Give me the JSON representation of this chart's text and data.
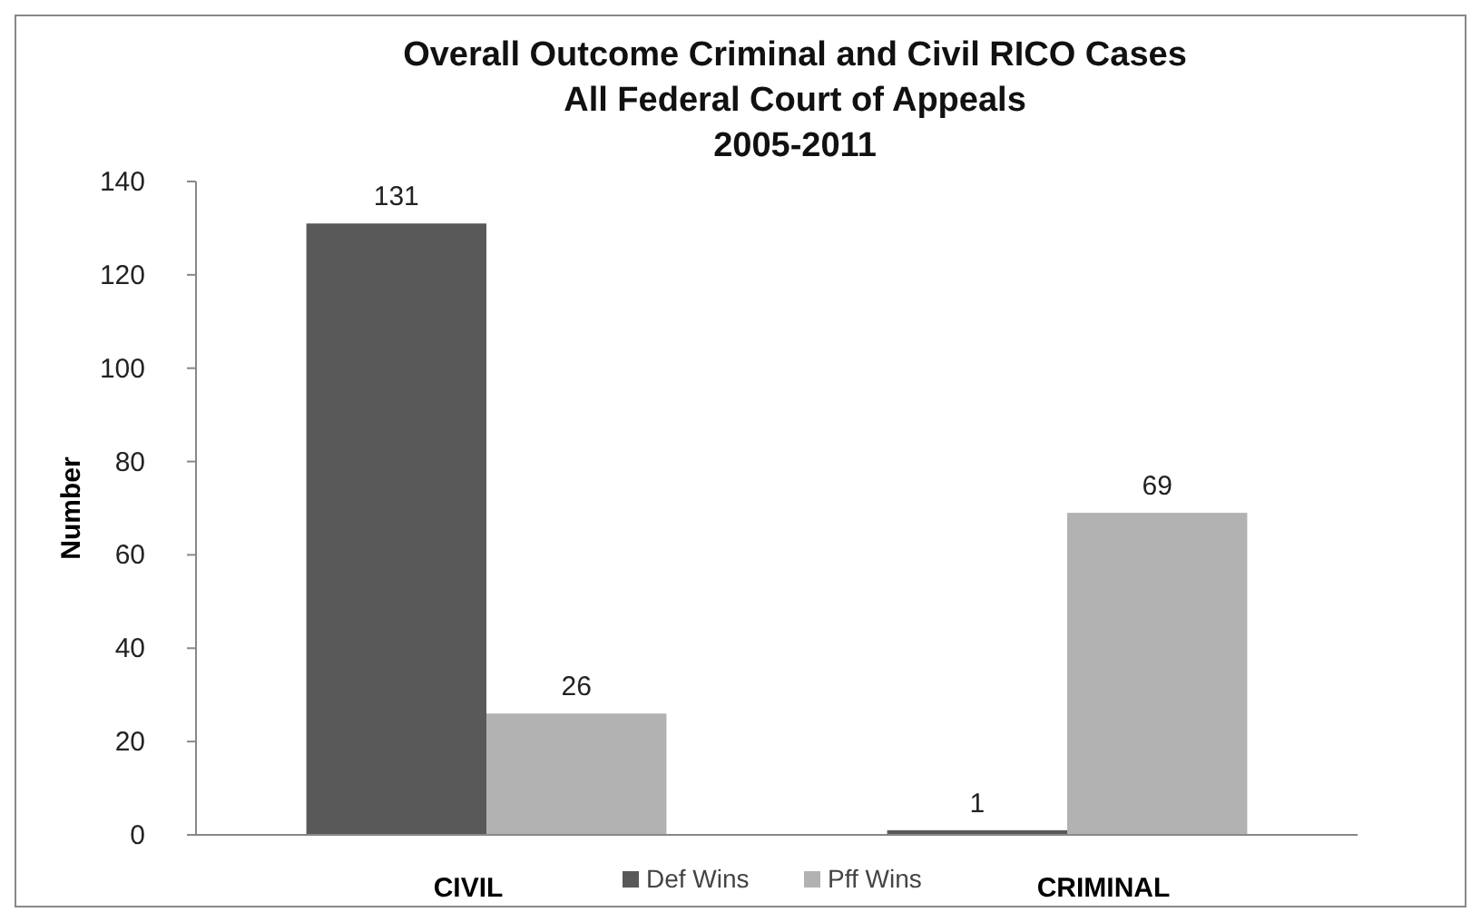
{
  "chart_data": {
    "type": "bar",
    "title": "Overall Outcome Criminal and Civil RICO Cases\nAll Federal Court of Appeals\n2005-2011",
    "ylabel": "Number",
    "categories": [
      "CIVIL",
      "CRIMINAL"
    ],
    "series": [
      {
        "name": "Def Wins",
        "color": "#595959",
        "values": [
          131,
          1
        ]
      },
      {
        "name": "Pff Wins",
        "color": "#b2b2b2",
        "values": [
          26,
          69
        ]
      }
    ],
    "ylim": [
      0,
      140
    ],
    "yticks": [
      0,
      20,
      40,
      60,
      80,
      100,
      120,
      140
    ],
    "grid": false,
    "legend": "bottom",
    "data_labels": true
  }
}
